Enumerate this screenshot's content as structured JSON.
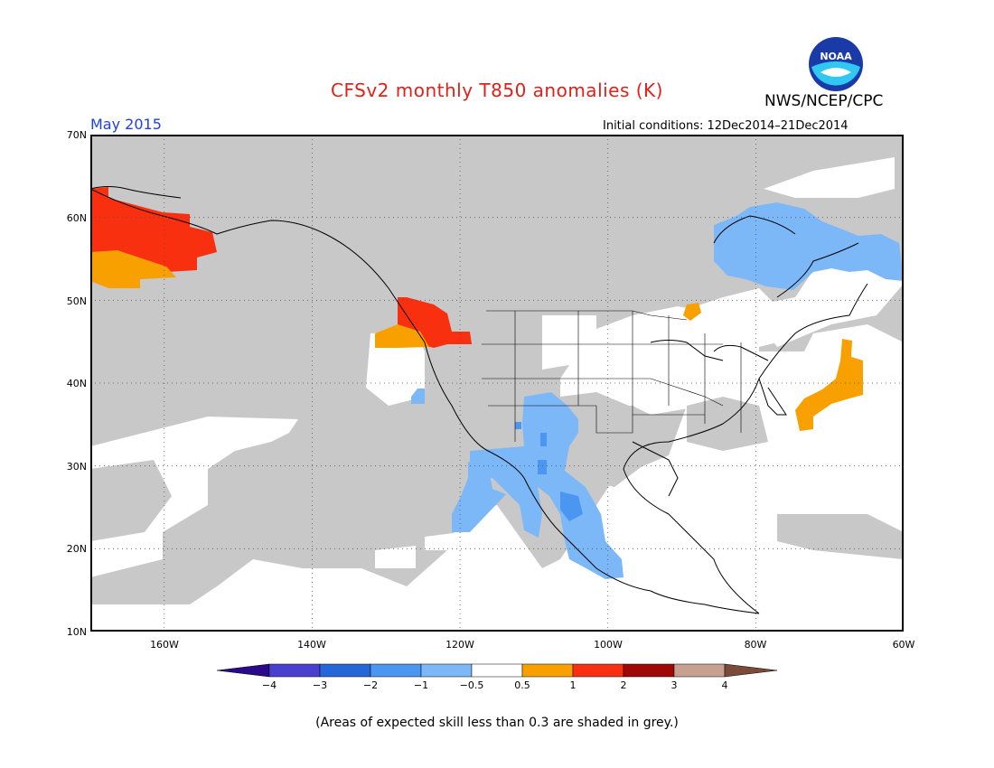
{
  "header": {
    "title": "CFSv2 monthly T850 anomalies (K)",
    "agency": "NWS/NCEP/CPC",
    "logo_text": "NOAA",
    "month": "May 2015",
    "initial_conditions": "Initial conditions: 12Dec2014–21Dec2014"
  },
  "map": {
    "lat_labels": [
      "70N",
      "60N",
      "50N",
      "40N",
      "30N",
      "20N",
      "10N"
    ],
    "lon_labels": [
      "160W",
      "140W",
      "120W",
      "100W",
      "80W",
      "60W"
    ],
    "colors": {
      "low_skill_grey": "#c8c8c8",
      "neutral": "#ffffff",
      "neg_0_5_1": "#7cb8f8",
      "neg_1_2": "#4a96f0",
      "pos_0_5_1": "#f8a000",
      "pos_1_2": "#f83010"
    }
  },
  "colorbar": {
    "labels": [
      "−4",
      "−3",
      "−2",
      "−1",
      "−0.5",
      "0.5",
      "1",
      "2",
      "3",
      "4"
    ],
    "colors": [
      "#2a0a8a",
      "#4a40d0",
      "#2468d8",
      "#4a96f0",
      "#7cb8f8",
      "#ffffff",
      "#f8a000",
      "#f83010",
      "#a00808",
      "#c8a090",
      "#7a4a3a"
    ]
  },
  "footnote": "(Areas of expected skill less than 0.3 are shaded in grey.)"
}
